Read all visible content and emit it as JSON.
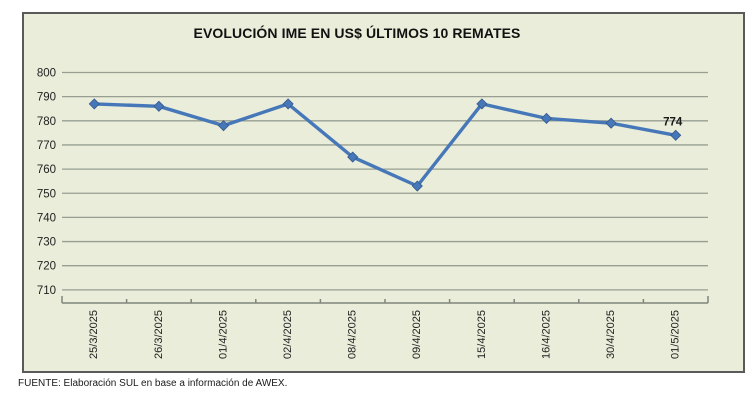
{
  "title": "EVOLUCIÓN IME EN US$ ÚLTIMOS 10 REMATES",
  "footer": "FUENTE: Elaboración SUL en base a información de AWEX.",
  "colors": {
    "chart_background": "#e9edd9",
    "frame_border": "#5a5a5a",
    "gridline": "#989e92",
    "axis_line": "#7f857c",
    "line": "#4677b8",
    "marker_edge": "#35588a",
    "text": "#1f1f1f"
  },
  "chart_data": {
    "type": "line",
    "title": "EVOLUCIÓN IME EN US$ ÚLTIMOS 10 REMATES",
    "xlabel": "",
    "ylabel": "",
    "categories": [
      "25/3/2025",
      "26/3/2025",
      "01/4/2025",
      "02/4/2025",
      "08/4/2025",
      "09/4/2025",
      "15/4/2025",
      "16/4/2025",
      "30/4/2025",
      "01/5/2025"
    ],
    "values": [
      787,
      786,
      778,
      787,
      765,
      753,
      787,
      781,
      779,
      774
    ],
    "yticks": [
      710,
      720,
      730,
      740,
      750,
      760,
      770,
      780,
      790,
      800
    ],
    "ylim": [
      705,
      800
    ],
    "grid": true,
    "legend": "none",
    "marker": "diamond",
    "last_point_label": "774"
  }
}
